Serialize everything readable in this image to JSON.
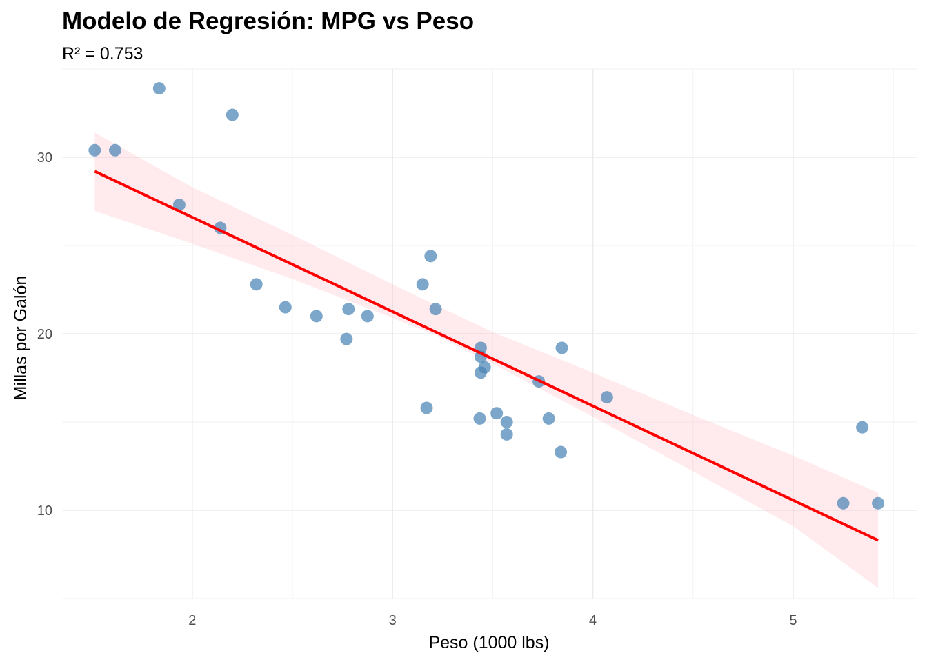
{
  "chart_data": {
    "type": "scatter",
    "title": "Modelo de Regresión: MPG vs Peso",
    "subtitle": "R² = 0.753",
    "xlabel": "Peso (1000 lbs)",
    "ylabel": "Millas por Galón",
    "xlim": [
      1.35,
      5.62
    ],
    "ylim": [
      5.0,
      35.0
    ],
    "x_ticks": [
      2,
      3,
      4,
      5
    ],
    "x_tick_labels": [
      "2",
      "3",
      "4",
      "5"
    ],
    "x_minor_ticks": [
      1.5,
      2.5,
      3.5,
      4.5,
      5.5
    ],
    "y_ticks": [
      10,
      20,
      30
    ],
    "y_tick_labels": [
      "10",
      "20",
      "30"
    ],
    "y_minor_ticks": [
      5,
      15,
      25,
      35
    ],
    "grid": true,
    "legend": "none",
    "point_color": "#4682b4",
    "line_color": "#ff0000",
    "band_color": "#ffc0cb",
    "points": [
      {
        "x": 2.62,
        "y": 21.0
      },
      {
        "x": 2.875,
        "y": 21.0
      },
      {
        "x": 2.32,
        "y": 22.8
      },
      {
        "x": 3.215,
        "y": 21.4
      },
      {
        "x": 3.44,
        "y": 18.7
      },
      {
        "x": 3.46,
        "y": 18.1
      },
      {
        "x": 3.57,
        "y": 14.3
      },
      {
        "x": 3.19,
        "y": 24.4
      },
      {
        "x": 3.15,
        "y": 22.8
      },
      {
        "x": 3.44,
        "y": 19.2
      },
      {
        "x": 3.44,
        "y": 17.8
      },
      {
        "x": 4.07,
        "y": 16.4
      },
      {
        "x": 3.73,
        "y": 17.3
      },
      {
        "x": 3.78,
        "y": 15.2
      },
      {
        "x": 5.25,
        "y": 10.4
      },
      {
        "x": 5.424,
        "y": 10.4
      },
      {
        "x": 5.345,
        "y": 14.7
      },
      {
        "x": 2.2,
        "y": 32.4
      },
      {
        "x": 1.615,
        "y": 30.4
      },
      {
        "x": 1.835,
        "y": 33.9
      },
      {
        "x": 2.465,
        "y": 21.5
      },
      {
        "x": 3.52,
        "y": 15.5
      },
      {
        "x": 3.435,
        "y": 15.2
      },
      {
        "x": 3.84,
        "y": 13.3
      },
      {
        "x": 3.845,
        "y": 19.2
      },
      {
        "x": 1.935,
        "y": 27.3
      },
      {
        "x": 2.14,
        "y": 26.0
      },
      {
        "x": 1.513,
        "y": 30.4
      },
      {
        "x": 3.17,
        "y": 15.8
      },
      {
        "x": 2.77,
        "y": 19.7
      },
      {
        "x": 3.57,
        "y": 15.0
      },
      {
        "x": 2.78,
        "y": 21.4
      }
    ],
    "regression": {
      "intercept": 37.285,
      "slope": -5.344,
      "x_range": [
        1.513,
        5.424
      ],
      "band": [
        {
          "x": 1.513,
          "lower": 26.96,
          "upper": 31.4
        },
        {
          "x": 2.0,
          "lower": 25.1,
          "upper": 28.3
        },
        {
          "x": 2.5,
          "lower": 23.1,
          "upper": 25.6
        },
        {
          "x": 3.0,
          "lower": 20.9,
          "upper": 22.8
        },
        {
          "x": 3.22,
          "lower": 19.9,
          "upper": 21.6
        },
        {
          "x": 3.5,
          "lower": 18.3,
          "upper": 20.1
        },
        {
          "x": 4.0,
          "lower": 15.3,
          "upper": 17.8
        },
        {
          "x": 4.5,
          "lower": 12.2,
          "upper": 15.4
        },
        {
          "x": 5.0,
          "lower": 9.1,
          "upper": 13.1
        },
        {
          "x": 5.424,
          "lower": 5.6,
          "upper": 11.0
        }
      ]
    }
  }
}
